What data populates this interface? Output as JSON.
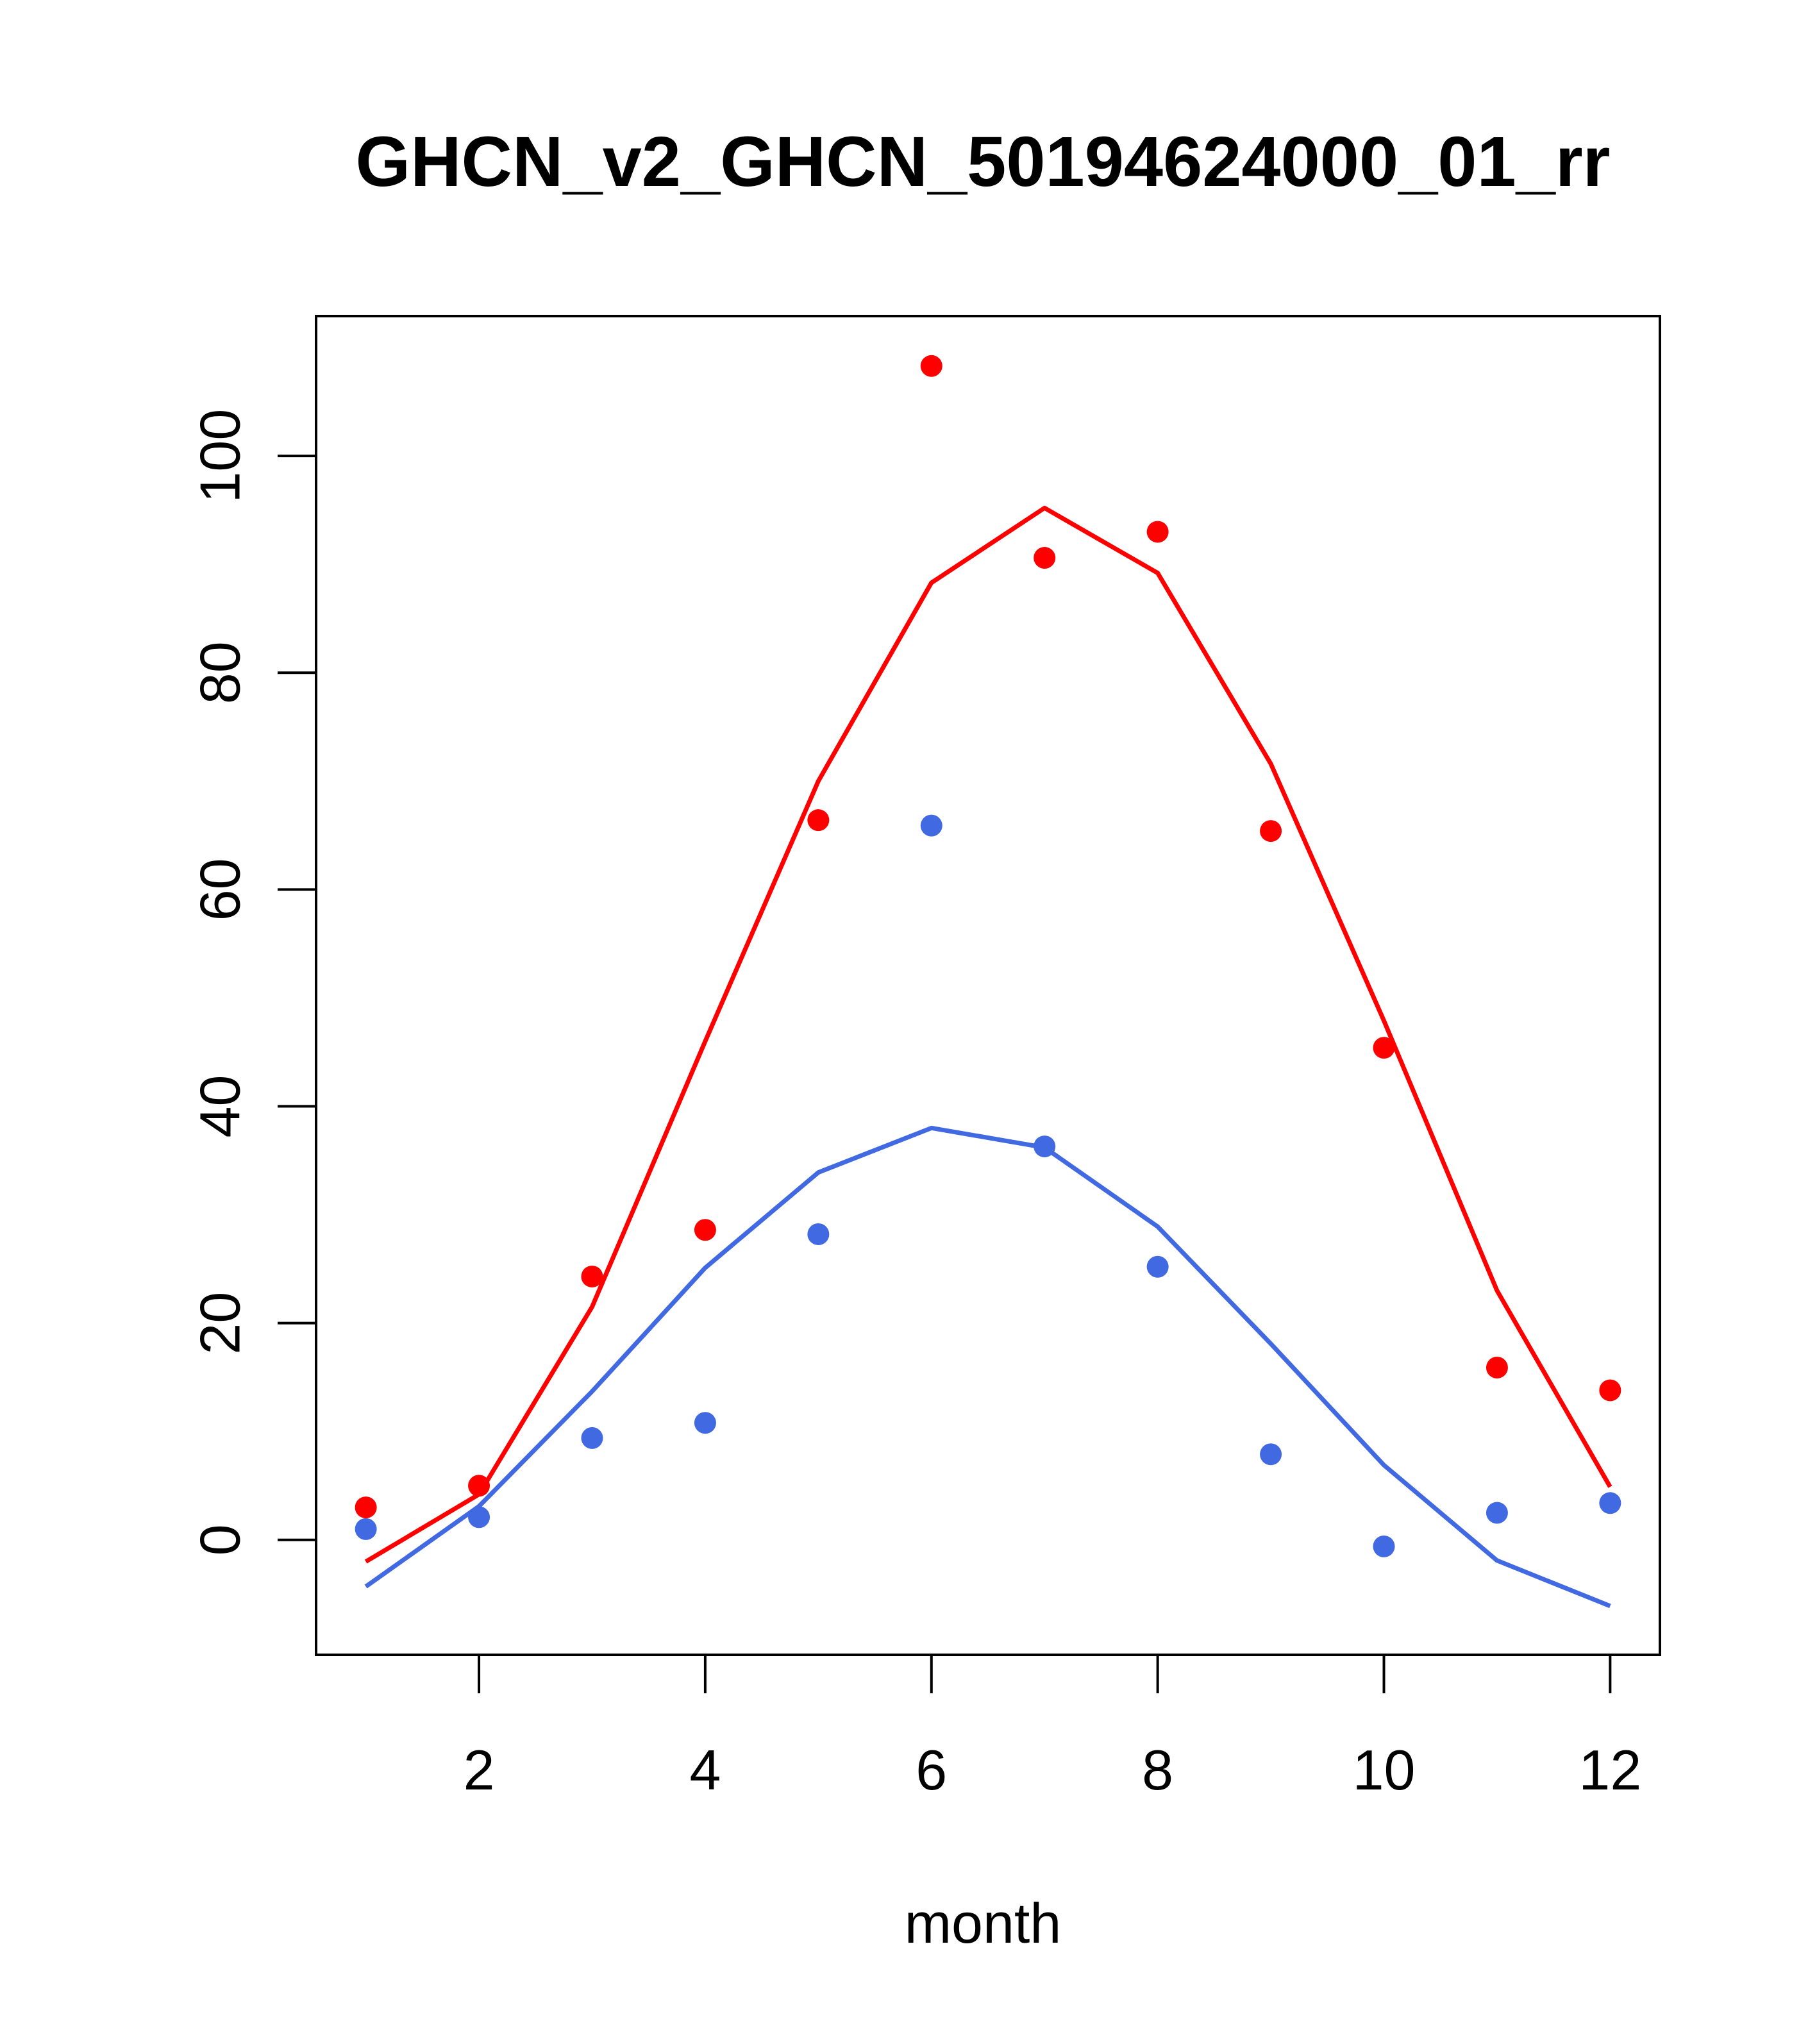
{
  "chart_data": {
    "type": "line",
    "title": "GHCN_v2_GHCN_50194624000_01_rr",
    "xlabel": "month",
    "ylabel": "",
    "xlim": [
      0.56,
      12.44
    ],
    "ylim": [
      -10.6,
      112.9
    ],
    "x_ticks": [
      2,
      4,
      6,
      8,
      10,
      12
    ],
    "y_ticks": [
      0,
      20,
      40,
      60,
      80,
      100
    ],
    "grid": false,
    "legend": "none",
    "series": [
      {
        "color": "#ff0000",
        "style": "points",
        "x": [
          1,
          2,
          3,
          4,
          5,
          6,
          7,
          8,
          9,
          10,
          11,
          12
        ],
        "y": [
          3,
          5,
          24.3,
          28.6,
          66.4,
          108.3,
          90.6,
          93,
          65.4,
          45.4,
          15.9,
          13.8
        ]
      },
      {
        "color": "#ff0000",
        "style": "line",
        "x": [
          1,
          2,
          3,
          4,
          5,
          6,
          7,
          8,
          9,
          10,
          11,
          12
        ],
        "y": [
          -2,
          4.2,
          21.5,
          46,
          70,
          88.3,
          95.2,
          89.2,
          71.6,
          47.9,
          23,
          4.9
        ]
      },
      {
        "color": "#4169e1",
        "style": "points",
        "x": [
          1,
          2,
          3,
          4,
          5,
          6,
          7,
          8,
          9,
          10,
          11,
          12
        ],
        "y": [
          1,
          2.1,
          9.4,
          10.8,
          28.2,
          65.9,
          36.3,
          25.2,
          7.9,
          -0.6,
          2.5,
          3.4
        ]
      },
      {
        "color": "#4169e1",
        "style": "line",
        "x": [
          1,
          2,
          3,
          4,
          5,
          6,
          7,
          8,
          9,
          10,
          11,
          12
        ],
        "y": [
          -4.3,
          3.1,
          13.7,
          25.1,
          33.9,
          38,
          36.2,
          28.9,
          18.1,
          6.9,
          -1.9,
          -6.1
        ]
      }
    ]
  }
}
